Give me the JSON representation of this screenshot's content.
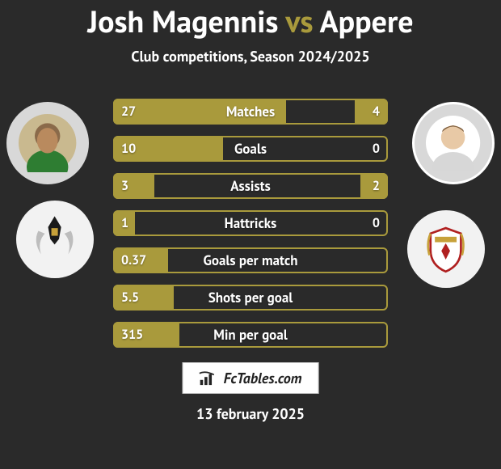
{
  "title": {
    "player1": "Josh Magennis",
    "vs": "vs",
    "player2": "Appere",
    "color1": "#ffffff",
    "color_vs": "#a99a3c",
    "color2": "#ffffff",
    "fontsize": 38
  },
  "subtitle": {
    "text": "Club competitions, Season 2024/2025",
    "fontsize": 18
  },
  "background_color": "#2a2a2a",
  "bar": {
    "border_color": "#a99a3c",
    "fill_color": "#a99a3c",
    "height": 32,
    "gap": 14,
    "radius": 6,
    "value_fontsize": 16,
    "metric_fontsize": 17
  },
  "rows": [
    {
      "metric": "Matches",
      "left": "27",
      "right": "4",
      "left_pct": 63,
      "right_pct": 12
    },
    {
      "metric": "Goals",
      "left": "10",
      "right": "0",
      "left_pct": 40,
      "right_pct": 0
    },
    {
      "metric": "Assists",
      "left": "3",
      "right": "2",
      "left_pct": 15,
      "right_pct": 10
    },
    {
      "metric": "Hattricks",
      "left": "1",
      "right": "0",
      "left_pct": 8,
      "right_pct": 0
    },
    {
      "metric": "Goals per match",
      "left": "0.37",
      "right": "",
      "left_pct": 20,
      "right_pct": 0
    },
    {
      "metric": "Shots per goal",
      "left": "5.5",
      "right": "",
      "left_pct": 22,
      "right_pct": 0
    },
    {
      "metric": "Min per goal",
      "left": "315",
      "right": "",
      "left_pct": 24,
      "right_pct": 0
    }
  ],
  "brand": "FcTables.com",
  "date": "13 february 2025"
}
